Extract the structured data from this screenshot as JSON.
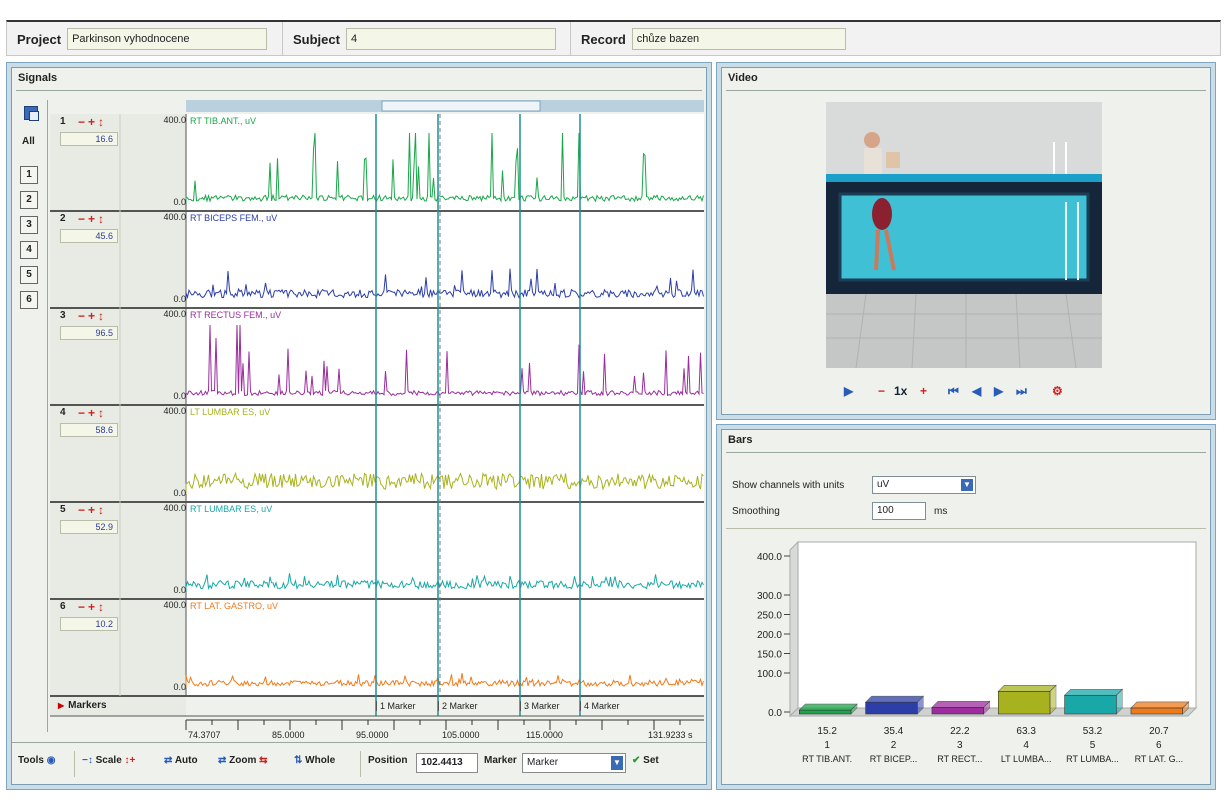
{
  "header": {
    "project_label": "Project",
    "project_value": "Parkinson vyhodnocene",
    "subject_label": "Subject",
    "subject_value": "4",
    "record_label": "Record",
    "record_value": "chůze bazen"
  },
  "signals": {
    "title": "Signals",
    "all_label": "All",
    "channel_buttons": [
      "1",
      "2",
      "3",
      "4",
      "5",
      "6"
    ],
    "rows": [
      {
        "num": "1",
        "value": "16.6",
        "ymax": "400.0",
        "ymin": "0.0",
        "name": "RT TIB.ANT., uV",
        "color": "#1aa64a",
        "base": 6,
        "spike": 38
      },
      {
        "num": "2",
        "value": "45.6",
        "ymax": "400.0",
        "ymin": "0.0",
        "name": "RT BICEPS FEM., uV",
        "color": "#2c3ea8",
        "base": 8,
        "spike": 22
      },
      {
        "num": "3",
        "value": "96.5",
        "ymax": "400.0",
        "ymin": "0.0",
        "name": "RT RECTUS FEM., uV",
        "color": "#9b2d9e",
        "base": 5,
        "spike": 40
      },
      {
        "num": "4",
        "value": "58.6",
        "ymax": "400.0",
        "ymin": "0.0",
        "name": "LT LUMBAR ES, uV",
        "color": "#a8b21e",
        "base": 16,
        "spike": 12
      },
      {
        "num": "5",
        "value": "52.9",
        "ymax": "400.0",
        "ymin": "0.0",
        "name": "RT LUMBAR ES, uV",
        "color": "#1aa7a7",
        "base": 8,
        "spike": 12
      },
      {
        "num": "6",
        "value": "10.2",
        "ymax": "400.0",
        "ymin": "0.0",
        "name": "RT LAT. GASTRO, uV",
        "color": "#f07a1a",
        "base": 6,
        "spike": 10
      }
    ],
    "markers_label": "Markers",
    "markers": [
      "1 Marker",
      "2 Marker",
      "3 Marker",
      "4 Marker"
    ],
    "x_ticks": [
      "74.3707",
      "85.0000",
      "95.0000",
      "105.0000",
      "115.0000",
      "131.9233 s"
    ]
  },
  "toolbar": {
    "tools_label": "Tools",
    "scale_label": "Scale",
    "auto_label": "Auto",
    "zoom_label": "Zoom",
    "whole_label": "Whole",
    "position_label": "Position",
    "position_value": "102.4413",
    "marker_label": "Marker",
    "marker_select": "Marker",
    "set_label": "Set"
  },
  "video": {
    "title": "Video",
    "speed": "1x"
  },
  "bars": {
    "title": "Bars",
    "units_label": "Show channels with units",
    "units_value": "uV",
    "smoothing_label": "Smoothing",
    "smoothing_value": "100",
    "smoothing_unit": "ms",
    "chart_data": {
      "type": "bar",
      "categories": [
        "1",
        "2",
        "3",
        "4",
        "5",
        "6"
      ],
      "category_names": [
        "RT TIB.ANT.",
        "RT BICEP...",
        "RT RECT...",
        "LT LUMBA...",
        "RT LUMBA...",
        "RT LAT. G..."
      ],
      "values": [
        15.2,
        35.4,
        22.2,
        63.3,
        53.2,
        20.7
      ],
      "colors": [
        "#1aa64a",
        "#2c3ea8",
        "#9b2d9e",
        "#a8b21e",
        "#1aa7a7",
        "#f07a1a"
      ],
      "y_ticks": [
        "0.0",
        "100.0",
        "150.0",
        "200.0",
        "250.0",
        "300.0",
        "400.0"
      ],
      "ylim": [
        0,
        400
      ]
    }
  }
}
